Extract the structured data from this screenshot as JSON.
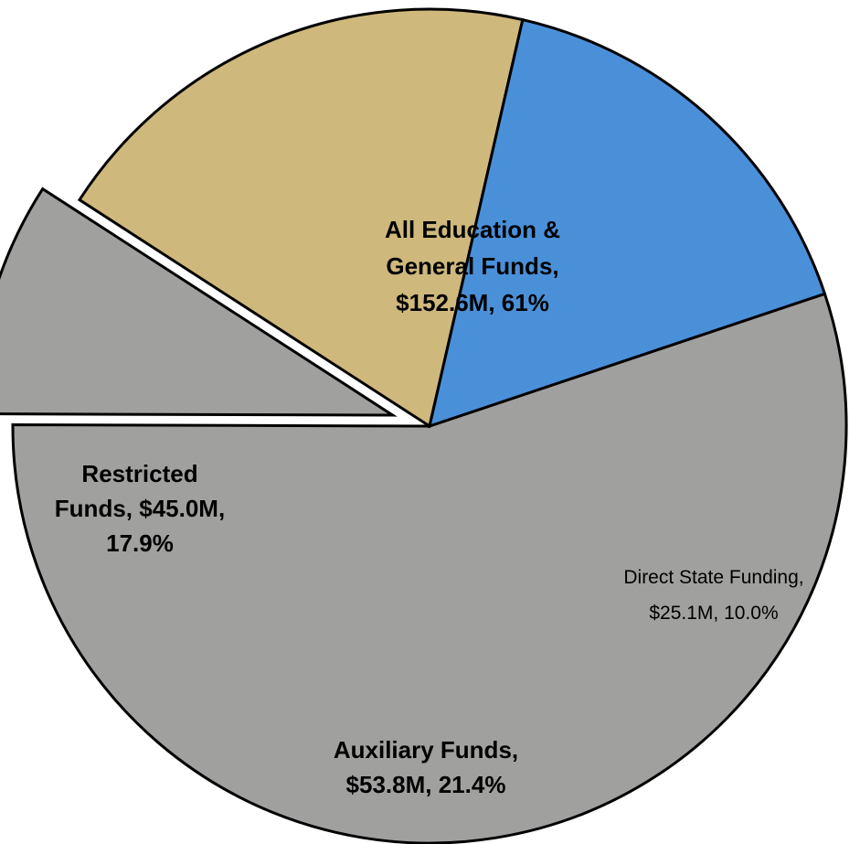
{
  "chart_data": {
    "type": "pie",
    "title": "",
    "slices": [
      {
        "name": "All Education & General Funds",
        "value": 152.6,
        "percent": 61,
        "label_lines": [
          "All Education &",
          "General Funds,",
          "$152.6M, 61%"
        ],
        "color": "#a0a09f",
        "label_bold": true,
        "exploded": false
      },
      {
        "name": "Direct State Funding",
        "value": 25.1,
        "percent": 10.0,
        "label_lines": [
          "Direct State Funding,",
          "$25.1M, 10.0%"
        ],
        "color": "#a0a09f",
        "label_bold": false,
        "exploded": true
      },
      {
        "name": "Auxiliary Funds",
        "value": 53.8,
        "percent": 21.4,
        "label_lines": [
          "Auxiliary Funds,",
          "$53.8M, 21.4%"
        ],
        "color": "#cfb87c",
        "label_bold": true,
        "exploded": false
      },
      {
        "name": "Restricted Funds",
        "value": 45.0,
        "percent": 17.9,
        "label_lines": [
          "Restricted",
          "Funds, $45.0M,",
          "17.9%"
        ],
        "color": "#4a90d9",
        "label_bold": true,
        "exploded": false
      }
    ],
    "start_angle_deg": -18.5,
    "direction": "clockwise",
    "legend": "none"
  }
}
